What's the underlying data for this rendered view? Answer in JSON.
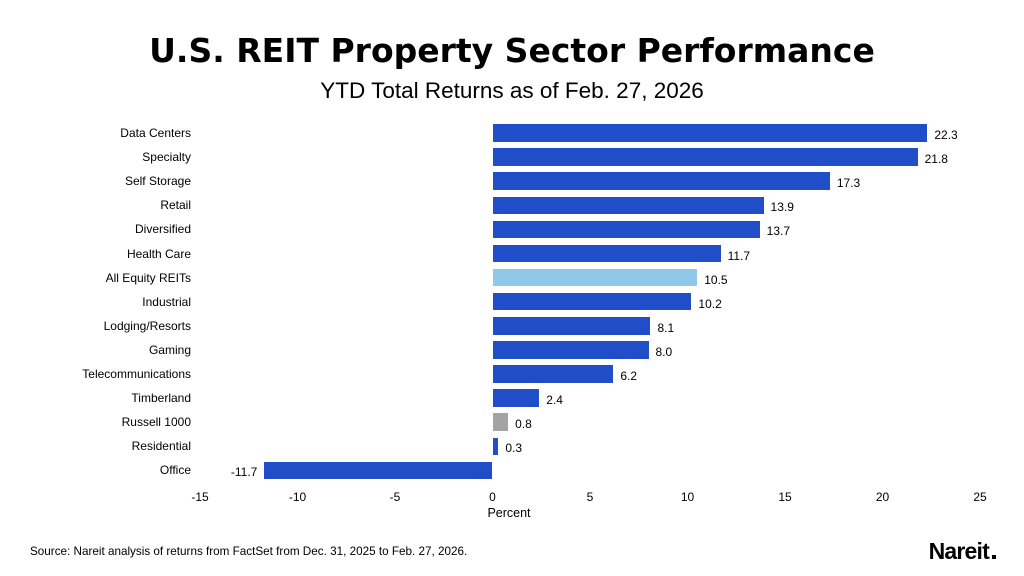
{
  "title": "U.S. REIT Property Sector Performance",
  "subtitle": "YTD Total Returns as of Feb. 27, 2026",
  "source_note": "Source: Nareit analysis of returns from FactSet from Dec. 31, 2025 to Feb. 27, 2026.",
  "logo_text": "Nareit",
  "colors": {
    "default": "#1f4ec8",
    "highlight": "#8fc8e9",
    "benchmark": "#a3a3a3",
    "text": "#000000",
    "background": "#ffffff"
  },
  "chart_data": {
    "type": "bar",
    "orientation": "horizontal",
    "title": "U.S. REIT Property Sector Performance",
    "subtitle": "YTD Total Returns as of Feb. 27, 2026",
    "categories": [
      "Data Centers",
      "Specialty",
      "Self Storage",
      "Retail",
      "Diversified",
      "Health Care",
      "All Equity REITs",
      "Industrial",
      "Lodging/Resorts",
      "Gaming",
      "Telecommunications",
      "Timberland",
      "Russell 1000",
      "Residential",
      "Office"
    ],
    "values": [
      22.3,
      21.8,
      17.3,
      13.9,
      13.7,
      11.7,
      10.5,
      10.2,
      8.1,
      8.0,
      6.2,
      2.4,
      0.8,
      0.3,
      -11.7
    ],
    "value_labels": [
      "22.3",
      "21.8",
      "17.3",
      "13.9",
      "13.7",
      "11.7",
      "10.5",
      "10.2",
      "8.1",
      "8.0",
      "6.2",
      "2.4",
      "0.8",
      "0.3",
      "-11.7"
    ],
    "bar_styles": [
      "default",
      "default",
      "default",
      "default",
      "default",
      "default",
      "highlight",
      "default",
      "default",
      "default",
      "default",
      "default",
      "benchmark",
      "default",
      "default"
    ],
    "xlabel": "Percent",
    "x_ticks": [
      -15,
      -10,
      -5,
      0,
      5,
      10,
      15,
      20,
      25
    ],
    "xlim": [
      -15,
      25
    ],
    "grid": false,
    "legend": false
  }
}
